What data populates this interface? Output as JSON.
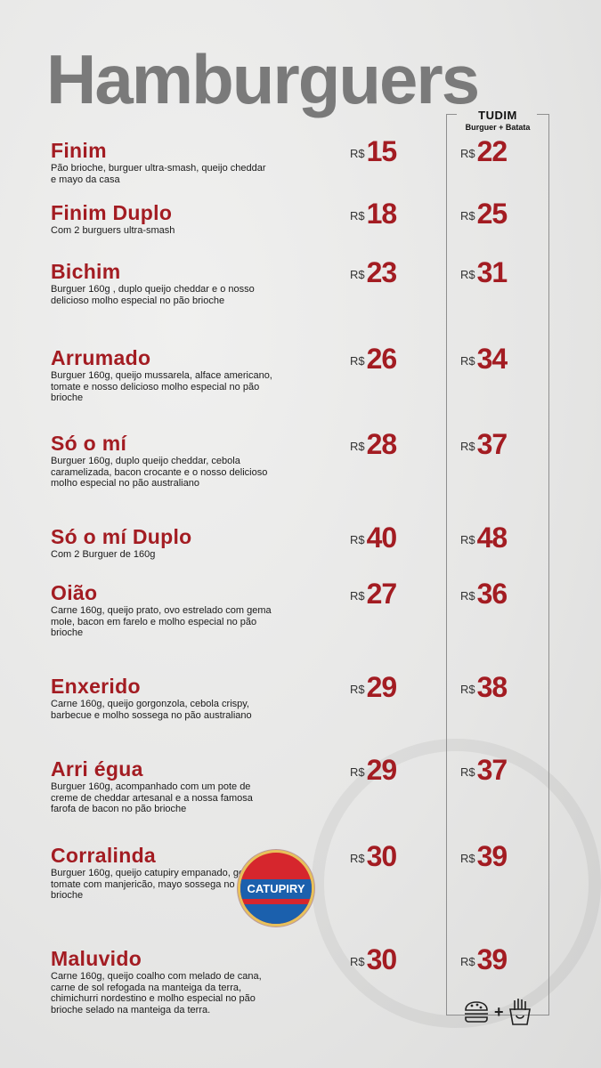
{
  "title": "Hamburguers",
  "combo": {
    "title": "TUDIM",
    "subtitle": "Burguer + Batata"
  },
  "currency": "R$",
  "items": [
    {
      "name": "Finim",
      "description": "Pão brioche, burguer ultra-smash, queijo cheddar e mayo da casa",
      "price": "15",
      "combo_price": "22"
    },
    {
      "name": "Finim Duplo",
      "description": "Com 2 burguers ultra-smash",
      "price": "18",
      "combo_price": "25"
    },
    {
      "name": "Bichim",
      "description": "Burguer 160g , duplo queijo cheddar e o nosso delicioso molho especial no pão brioche",
      "price": "23",
      "combo_price": "31"
    },
    {
      "name": "Arrumado",
      "description": "Burguer 160g, queijo mussarela, alface americano, tomate e nosso delicioso molho especial no pão brioche",
      "price": "26",
      "combo_price": "34"
    },
    {
      "name": "Só o mí",
      "description": "Burguer 160g, duplo queijo cheddar, cebola caramelizada, bacon crocante e o nosso delicioso molho especial no pão australiano",
      "price": "28",
      "combo_price": "37"
    },
    {
      "name": "Só o mí Duplo",
      "description": "Com 2 Burguer de 160g",
      "price": "40",
      "combo_price": "48"
    },
    {
      "name": "Oião",
      "description": "Carne 160g, queijo prato, ovo estrelado com gema mole, bacon em farelo e molho especial no pão brioche",
      "price": "27",
      "combo_price": "36"
    },
    {
      "name": "Enxerido",
      "description": "Carne 160g, queijo gorgonzola, cebola crispy, barbecue e molho sossega no pão australiano",
      "price": "29",
      "combo_price": "38"
    },
    {
      "name": "Arri égua",
      "description": "Burguer 160g, acompanhado com um pote de creme de cheddar artesanal e a nossa famosa farofa de bacon no pão brioche",
      "price": "29",
      "combo_price": "37"
    },
    {
      "name": "Corralinda",
      "description": "Burguer 160g, queijo catupiry empanado, geléia de tomate com manjericão, mayo sossega no pão brioche",
      "price": "30",
      "combo_price": "39"
    },
    {
      "name": "Maluvido",
      "description": "Carne 160g, queijo coalho com melado de cana, carne de sol refogada na manteiga da terra, chimichurri nordestino e molho especial no pão brioche selado na manteiga da terra.",
      "price": "30",
      "combo_price": "39"
    }
  ],
  "catupiry_logo": {
    "text": "CATUPIRY"
  },
  "colors": {
    "accent": "#a31c22",
    "title": "#7a7a7a"
  },
  "footer_icons": [
    "burger-icon",
    "plus",
    "fries-icon"
  ]
}
